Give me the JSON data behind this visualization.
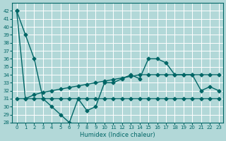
{
  "xlabel": "Humidex (Indice chaleur)",
  "ylabel": "",
  "x": [
    0,
    1,
    2,
    3,
    4,
    5,
    6,
    7,
    8,
    9,
    10,
    11,
    12,
    13,
    14,
    15,
    16,
    17,
    18,
    19,
    20,
    21,
    22,
    23
  ],
  "line1": [
    42,
    39,
    36,
    31,
    30,
    29,
    28,
    31,
    29.5,
    30,
    33,
    33,
    33.5,
    34,
    33.5,
    36,
    36,
    35.5,
    34,
    34,
    34,
    32,
    32.5,
    32
  ],
  "line2": [
    42,
    31,
    31,
    31,
    31,
    31,
    31,
    31,
    31,
    31,
    31,
    31,
    31,
    31,
    31,
    31,
    31,
    31,
    31,
    31,
    31,
    31,
    31,
    31
  ],
  "line3": [
    31,
    31,
    31.5,
    31.8,
    32,
    32.2,
    32.4,
    32.6,
    32.8,
    33,
    33.2,
    33.4,
    33.6,
    33.8,
    34,
    34,
    34,
    34,
    34,
    34,
    34,
    34,
    34,
    34
  ],
  "bg_color": "#b2d8d8",
  "grid_color": "#ffffff",
  "line_color": "#006666",
  "ylim": [
    28,
    43
  ],
  "xlim": [
    -0.5,
    23.5
  ],
  "yticks": [
    28,
    29,
    30,
    31,
    32,
    33,
    34,
    35,
    36,
    37,
    38,
    39,
    40,
    41,
    42
  ],
  "xticks": [
    0,
    1,
    2,
    3,
    4,
    5,
    6,
    7,
    8,
    9,
    10,
    11,
    12,
    13,
    14,
    15,
    16,
    17,
    18,
    19,
    20,
    21,
    22,
    23
  ]
}
